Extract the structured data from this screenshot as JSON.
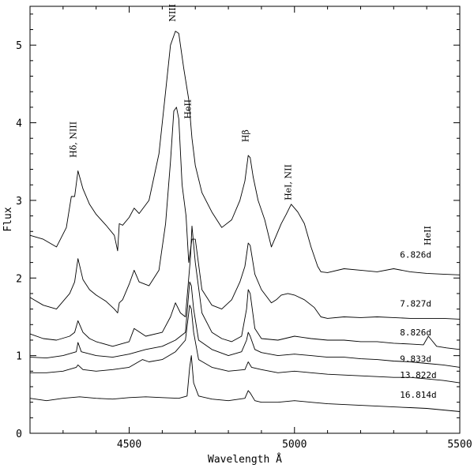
{
  "chart_data": {
    "type": "line",
    "title": "",
    "xlabel": "Wavelength Å",
    "ylabel": "Flux",
    "xlim": [
      4200,
      5500
    ],
    "ylim": [
      0,
      5.5
    ],
    "x_ticks": [
      4500,
      5000,
      5500
    ],
    "y_ticks": [
      0,
      1,
      2,
      3,
      4,
      5
    ],
    "grid": false,
    "line_annotations": [
      {
        "text": "Hδ, NIII",
        "wavelength": 4340,
        "flux": 3.55
      },
      {
        "text": "NIII",
        "wavelength": 4640,
        "flux": 5.3
      },
      {
        "text": "HeII",
        "wavelength": 4686,
        "flux": 4.05
      },
      {
        "text": "Hβ",
        "wavelength": 4861,
        "flux": 3.75
      },
      {
        "text": "HeI, NII",
        "wavelength": 4990,
        "flux": 3.0
      },
      {
        "text": "HeII",
        "wavelength": 5411,
        "flux": 2.42
      }
    ],
    "series": [
      {
        "name": "6.826d",
        "x": [
          4200,
          4240,
          4280,
          4310,
          4325,
          4335,
          4345,
          4360,
          4380,
          4400,
          4430,
          4455,
          4465,
          4470,
          4480,
          4500,
          4515,
          4530,
          4560,
          4590,
          4610,
          4625,
          4640,
          4650,
          4665,
          4680,
          4690,
          4700,
          4720,
          4750,
          4780,
          4810,
          4835,
          4850,
          4860,
          4866,
          4875,
          4890,
          4910,
          4930,
          4945,
          4960,
          4975,
          4990,
          5000,
          5010,
          5030,
          5050,
          5070,
          5080,
          5100,
          5150,
          5200,
          5250,
          5300,
          5350,
          5400,
          5450,
          5500
        ],
        "y": [
          2.55,
          2.5,
          2.4,
          2.65,
          3.05,
          3.05,
          3.38,
          3.15,
          2.95,
          2.82,
          2.68,
          2.55,
          2.35,
          2.7,
          2.68,
          2.78,
          2.9,
          2.83,
          3.0,
          3.6,
          4.4,
          5.0,
          5.18,
          5.15,
          4.7,
          4.3,
          3.8,
          3.45,
          3.1,
          2.85,
          2.65,
          2.75,
          3.0,
          3.25,
          3.58,
          3.55,
          3.3,
          3.0,
          2.75,
          2.4,
          2.55,
          2.7,
          2.82,
          2.95,
          2.9,
          2.85,
          2.7,
          2.4,
          2.15,
          2.08,
          2.07,
          2.12,
          2.1,
          2.08,
          2.12,
          2.08,
          2.06,
          2.05,
          2.04
        ]
      },
      {
        "name": "7.827d",
        "x": [
          4200,
          4240,
          4280,
          4320,
          4335,
          4345,
          4360,
          4380,
          4400,
          4430,
          4455,
          4465,
          4470,
          4480,
          4500,
          4515,
          4530,
          4560,
          4590,
          4610,
          4625,
          4635,
          4643,
          4650,
          4660,
          4672,
          4680,
          4690,
          4700,
          4720,
          4750,
          4780,
          4810,
          4835,
          4850,
          4860,
          4866,
          4880,
          4900,
          4930,
          4945,
          4960,
          4980,
          5000,
          5030,
          5060,
          5080,
          5100,
          5150,
          5200,
          5250,
          5300,
          5350,
          5400,
          5450,
          5500
        ],
        "y": [
          1.75,
          1.65,
          1.6,
          1.8,
          1.95,
          2.25,
          1.98,
          1.85,
          1.78,
          1.7,
          1.6,
          1.55,
          1.68,
          1.72,
          1.92,
          2.1,
          1.95,
          1.9,
          2.1,
          2.7,
          3.5,
          4.15,
          4.2,
          4.05,
          3.2,
          2.8,
          2.2,
          2.5,
          2.5,
          1.85,
          1.65,
          1.6,
          1.72,
          1.95,
          2.15,
          2.45,
          2.42,
          2.05,
          1.85,
          1.68,
          1.72,
          1.78,
          1.8,
          1.78,
          1.72,
          1.62,
          1.5,
          1.48,
          1.5,
          1.49,
          1.5,
          1.49,
          1.48,
          1.48,
          1.48,
          1.47
        ]
      },
      {
        "name": "8.826d",
        "x": [
          4200,
          4240,
          4280,
          4320,
          4335,
          4345,
          4360,
          4380,
          4400,
          4450,
          4500,
          4515,
          4550,
          4600,
          4625,
          4640,
          4655,
          4670,
          4685,
          4690,
          4700,
          4720,
          4750,
          4780,
          4810,
          4840,
          4855,
          4860,
          4866,
          4880,
          4900,
          4950,
          5000,
          5050,
          5100,
          5150,
          5200,
          5250,
          5300,
          5350,
          5390,
          5405,
          5415,
          5430,
          5460,
          5500
        ],
        "y": [
          1.28,
          1.22,
          1.2,
          1.25,
          1.3,
          1.45,
          1.3,
          1.22,
          1.18,
          1.12,
          1.18,
          1.35,
          1.25,
          1.3,
          1.5,
          1.68,
          1.55,
          1.5,
          2.25,
          2.67,
          2.2,
          1.55,
          1.3,
          1.22,
          1.18,
          1.25,
          1.6,
          1.85,
          1.8,
          1.35,
          1.22,
          1.2,
          1.25,
          1.22,
          1.2,
          1.2,
          1.18,
          1.18,
          1.16,
          1.15,
          1.14,
          1.25,
          1.2,
          1.12,
          1.1,
          1.08
        ]
      },
      {
        "name": "9.833d",
        "x": [
          4200,
          4250,
          4300,
          4340,
          4345,
          4355,
          4400,
          4450,
          4500,
          4550,
          4600,
          4640,
          4670,
          4683,
          4688,
          4695,
          4710,
          4750,
          4800,
          4840,
          4855,
          4860,
          4866,
          4880,
          4900,
          4950,
          5000,
          5050,
          5100,
          5150,
          5200,
          5250,
          5300,
          5350,
          5400,
          5450,
          5500
        ],
        "y": [
          0.98,
          0.97,
          1.0,
          1.05,
          1.17,
          1.05,
          1.0,
          0.98,
          1.02,
          1.08,
          1.12,
          1.2,
          1.3,
          1.95,
          1.9,
          1.6,
          1.2,
          1.08,
          1.0,
          1.05,
          1.2,
          1.3,
          1.25,
          1.08,
          1.04,
          1.0,
          1.02,
          1.0,
          0.98,
          0.98,
          0.96,
          0.95,
          0.93,
          0.92,
          0.9,
          0.88,
          0.85
        ]
      },
      {
        "name": "13.822d",
        "x": [
          4200,
          4250,
          4300,
          4340,
          4345,
          4360,
          4400,
          4450,
          4500,
          4540,
          4560,
          4600,
          4640,
          4670,
          4683,
          4688,
          4695,
          4710,
          4750,
          4800,
          4850,
          4860,
          4870,
          4900,
          4950,
          5000,
          5050,
          5100,
          5150,
          5200,
          5250,
          5300,
          5350,
          5400,
          5450,
          5500
        ],
        "y": [
          0.78,
          0.78,
          0.8,
          0.85,
          0.88,
          0.82,
          0.8,
          0.82,
          0.85,
          0.95,
          0.92,
          0.95,
          1.05,
          1.2,
          1.65,
          1.6,
          1.3,
          0.95,
          0.85,
          0.8,
          0.82,
          0.92,
          0.85,
          0.82,
          0.78,
          0.8,
          0.78,
          0.76,
          0.75,
          0.74,
          0.73,
          0.72,
          0.72,
          0.7,
          0.68,
          0.65
        ]
      },
      {
        "name": "16.814d",
        "x": [
          4200,
          4250,
          4300,
          4350,
          4400,
          4450,
          4500,
          4550,
          4600,
          4650,
          4675,
          4683,
          4688,
          4695,
          4710,
          4750,
          4800,
          4850,
          4860,
          4866,
          4880,
          4900,
          4950,
          5000,
          5050,
          5100,
          5150,
          5200,
          5250,
          5300,
          5350,
          5400,
          5450,
          5500
        ],
        "y": [
          0.45,
          0.42,
          0.45,
          0.47,
          0.45,
          0.44,
          0.46,
          0.47,
          0.46,
          0.45,
          0.48,
          0.85,
          1.0,
          0.65,
          0.48,
          0.44,
          0.42,
          0.45,
          0.55,
          0.52,
          0.42,
          0.4,
          0.4,
          0.42,
          0.4,
          0.38,
          0.37,
          0.36,
          0.35,
          0.34,
          0.33,
          0.32,
          0.3,
          0.28
        ]
      }
    ]
  }
}
